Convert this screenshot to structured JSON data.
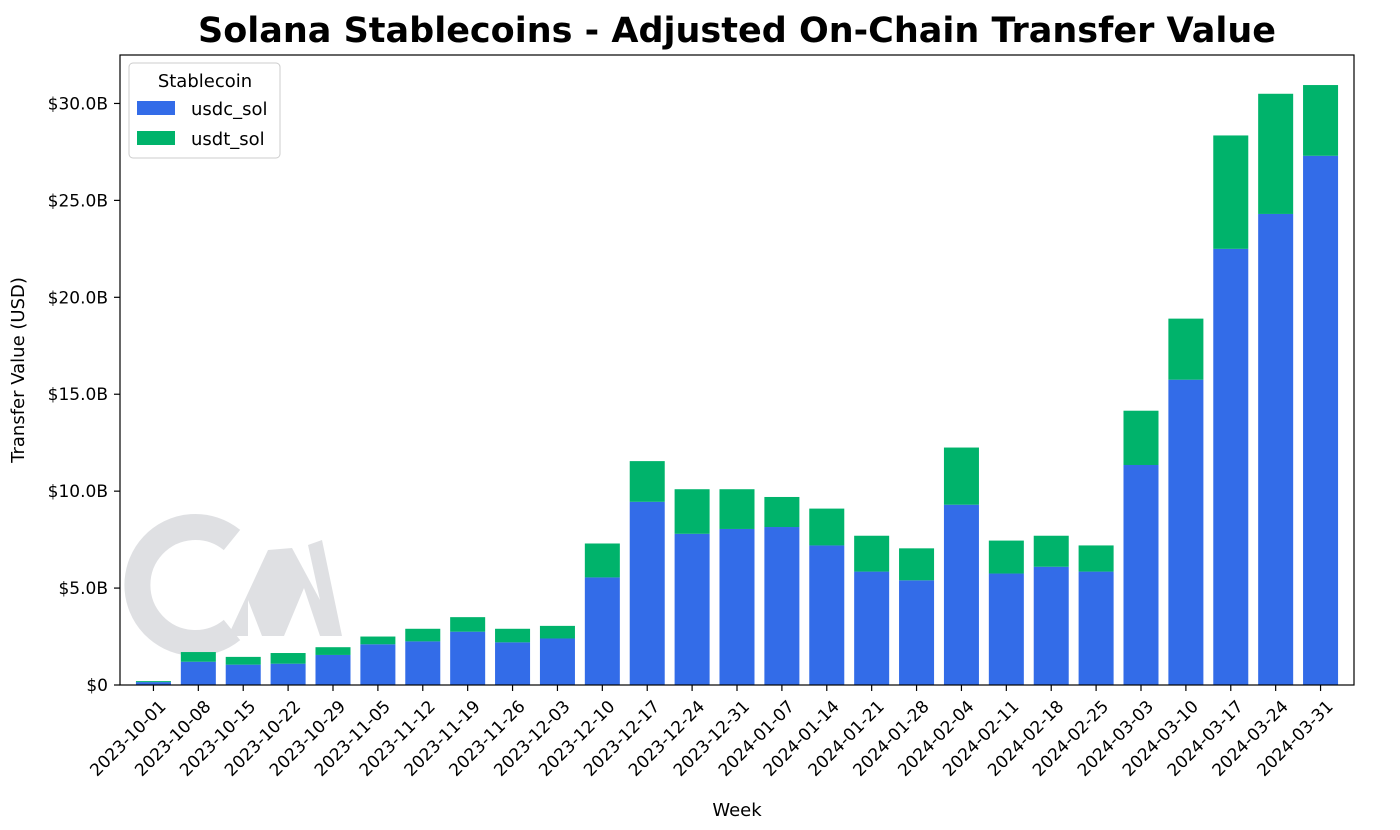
{
  "chart_data": {
    "type": "bar",
    "stacked": true,
    "title": "Solana Stablecoins - Adjusted On-Chain Transfer Value",
    "xlabel": "Week",
    "ylabel": "Transfer Value (USD)",
    "ylim": [
      0,
      32.5
    ],
    "y_unit": "billion USD",
    "y_ticks": [
      0,
      5,
      10,
      15,
      20,
      25,
      30
    ],
    "y_tick_labels": [
      "$0",
      "$5.0B",
      "$10.0B",
      "$15.0B",
      "$20.0B",
      "$25.0B",
      "$30.0B"
    ],
    "legend": {
      "title": "Stablecoin",
      "placement": "top-left"
    },
    "grid": false,
    "categories": [
      "2023-10-01",
      "2023-10-08",
      "2023-10-15",
      "2023-10-22",
      "2023-10-29",
      "2023-11-05",
      "2023-11-12",
      "2023-11-19",
      "2023-11-26",
      "2023-12-03",
      "2023-12-10",
      "2023-12-17",
      "2023-12-24",
      "2023-12-31",
      "2024-01-07",
      "2024-01-14",
      "2024-01-21",
      "2024-01-28",
      "2024-02-04",
      "2024-02-11",
      "2024-02-18",
      "2024-02-25",
      "2024-03-03",
      "2024-03-10",
      "2024-03-17",
      "2024-03-24",
      "2024-03-31"
    ],
    "series": [
      {
        "name": "usdc_sol",
        "color": "#336ce8",
        "values": [
          0.15,
          1.2,
          1.05,
          1.1,
          1.55,
          2.1,
          2.25,
          2.75,
          2.2,
          2.4,
          5.55,
          9.45,
          7.8,
          8.05,
          8.15,
          7.2,
          5.85,
          5.4,
          9.3,
          5.75,
          6.1,
          5.85,
          11.35,
          15.75,
          22.5,
          24.3,
          27.3
        ]
      },
      {
        "name": "usdt_sol",
        "color": "#00b36b",
        "values": [
          0.05,
          0.5,
          0.4,
          0.55,
          0.4,
          0.4,
          0.65,
          0.75,
          0.7,
          0.65,
          1.75,
          2.1,
          2.3,
          2.05,
          1.55,
          1.9,
          1.85,
          1.65,
          2.95,
          1.7,
          1.6,
          1.35,
          2.8,
          3.15,
          5.85,
          6.2,
          3.65
        ]
      }
    ]
  }
}
